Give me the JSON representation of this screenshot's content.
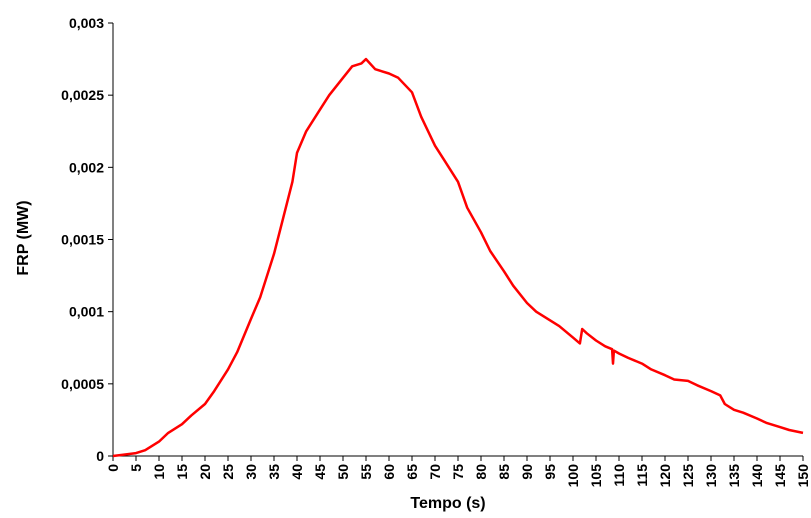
{
  "chart_data": {
    "type": "line",
    "title": "",
    "xlabel": "Tempo (s)",
    "ylabel": "FRP (MW)",
    "xlim": [
      0,
      150
    ],
    "ylim": [
      0,
      0.003
    ],
    "grid": false,
    "legend": "none",
    "x_ticks": [
      "0",
      "5",
      "10",
      "15",
      "20",
      "25",
      "30",
      "35",
      "40",
      "45",
      "50",
      "55",
      "60",
      "65",
      "70",
      "75",
      "80",
      "85",
      "90",
      "95",
      "100",
      "105",
      "110",
      "115",
      "120",
      "125",
      "130",
      "135",
      "140",
      "145",
      "150"
    ],
    "y_ticks": [
      {
        "value": 0,
        "label": "0"
      },
      {
        "value": 0.0005,
        "label": "0,0005"
      },
      {
        "value": 0.001,
        "label": "0,001"
      },
      {
        "value": 0.0015,
        "label": "0,0015"
      },
      {
        "value": 0.002,
        "label": "0,002"
      },
      {
        "value": 0.0025,
        "label": "0,0025"
      },
      {
        "value": 0.003,
        "label": "0,003"
      }
    ],
    "series": [
      {
        "color": "#ff0000",
        "x": [
          0,
          5,
          7,
          10,
          12,
          15,
          17,
          20,
          22,
          25,
          27,
          30,
          32,
          35,
          37,
          39,
          40,
          42,
          45,
          47,
          50,
          52,
          54,
          55,
          57,
          60,
          62,
          65,
          67,
          70,
          72,
          75,
          77,
          80,
          82,
          85,
          87,
          90,
          92,
          95,
          97,
          100,
          101.5,
          102,
          103,
          105,
          107,
          108.5,
          108.7,
          108.9,
          110,
          112,
          115,
          117,
          120,
          122,
          125,
          127,
          130,
          132,
          133,
          133.5,
          135,
          137,
          140,
          142,
          145,
          147,
          150
        ],
        "y": [
          0,
          2e-05,
          4e-05,
          0.0001,
          0.00016,
          0.00022,
          0.00028,
          0.00036,
          0.00045,
          0.0006,
          0.00072,
          0.00095,
          0.0011,
          0.0014,
          0.00165,
          0.0019,
          0.0021,
          0.00225,
          0.0024,
          0.0025,
          0.00262,
          0.0027,
          0.00272,
          0.00275,
          0.00268,
          0.00265,
          0.00262,
          0.00252,
          0.00235,
          0.00215,
          0.00205,
          0.0019,
          0.00172,
          0.00155,
          0.00142,
          0.00128,
          0.00118,
          0.00106,
          0.001,
          0.00094,
          0.0009,
          0.00082,
          0.00078,
          0.00088,
          0.00085,
          0.0008,
          0.00076,
          0.00074,
          0.00064,
          0.00073,
          0.00071,
          0.00068,
          0.00064,
          0.0006,
          0.00056,
          0.00053,
          0.00052,
          0.00049,
          0.00045,
          0.00042,
          0.00036,
          0.00035,
          0.00032,
          0.0003,
          0.00026,
          0.00023,
          0.0002,
          0.00018,
          0.00016
        ]
      }
    ]
  }
}
